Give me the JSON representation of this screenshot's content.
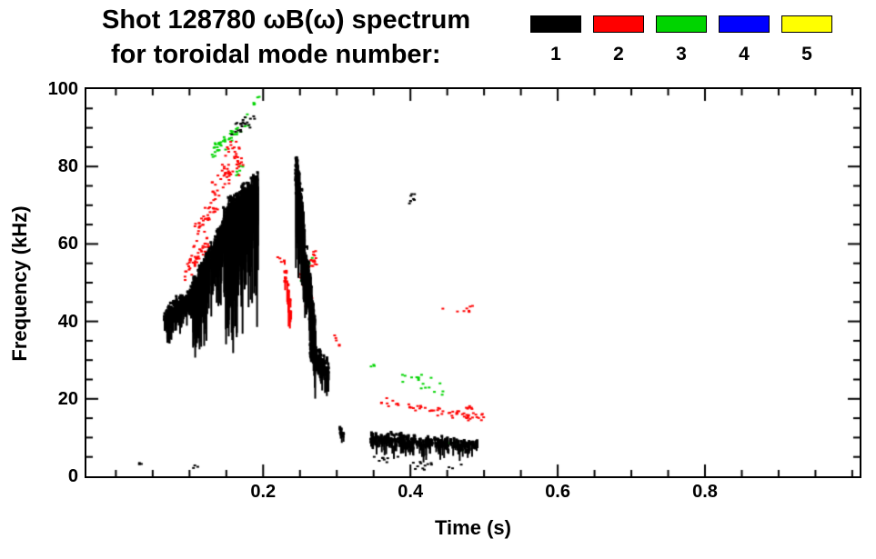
{
  "title_line1": "Shot 128780 ωB(ω) spectrum",
  "title_line2": "for toroidal mode number:",
  "legend": {
    "modes": [
      {
        "label": "1",
        "color": "#000000"
      },
      {
        "label": "2",
        "color": "#ff0000"
      },
      {
        "label": "3",
        "color": "#00d400"
      },
      {
        "label": "4",
        "color": "#0000ff"
      },
      {
        "label": "5",
        "color": "#ffff00"
      }
    ]
  },
  "colors": {
    "background": "#ffffff",
    "axis": "#000000"
  },
  "axes": {
    "x": {
      "label": "Time (s)",
      "major_ticks": [
        {
          "v": 0.2,
          "label": "0.2"
        },
        {
          "v": 0.4,
          "label": "0.4"
        },
        {
          "v": 0.6,
          "label": "0.6"
        },
        {
          "v": 0.8,
          "label": "0.8"
        }
      ],
      "minor_step": 0.05
    },
    "y": {
      "label": "Frequency (kHz)",
      "major_ticks": [
        {
          "v": 0,
          "label": "0"
        },
        {
          "v": 20,
          "label": "20"
        },
        {
          "v": 40,
          "label": "40"
        },
        {
          "v": 60,
          "label": "60"
        },
        {
          "v": 80,
          "label": "80"
        },
        {
          "v": 100,
          "label": "100"
        }
      ],
      "minor_step": 5
    }
  },
  "chart_data": {
    "type": "scatter",
    "title": "Shot 128780 ωB(ω) spectrum for toroidal mode number",
    "xlabel": "Time (s)",
    "ylabel": "Frequency (kHz)",
    "xlim": [
      -0.04,
      1.01
    ],
    "ylim": [
      0,
      100
    ],
    "legend_position": "top-right",
    "grid": false,
    "series": [
      {
        "name": "n=1",
        "color": "#000000",
        "clusters": [
          {
            "type": "streaks",
            "t": [
              0.065,
              0.105
            ],
            "f": [
              41,
              47
            ],
            "spread": 2.5,
            "tail": 8,
            "n": 220,
            "seed": 11
          },
          {
            "type": "streaks",
            "t": [
              0.103,
              0.147
            ],
            "f": [
              48,
              64
            ],
            "spread": 3,
            "tail": 22,
            "n": 300,
            "seed": 12
          },
          {
            "type": "streaks",
            "t": [
              0.145,
              0.192
            ],
            "f": [
              67,
              75
            ],
            "spread": 3.5,
            "tail": 38,
            "n": 340,
            "seed": 13
          },
          {
            "type": "speckle",
            "t": [
              0.155,
              0.19
            ],
            "f": [
              89,
              93
            ],
            "spread": 2,
            "n": 22,
            "seed": 14
          },
          {
            "type": "streaks",
            "t": [
              0.243,
              0.254
            ],
            "f": [
              80,
              66
            ],
            "spread": 5,
            "tail": 28,
            "n": 130,
            "seed": 15
          },
          {
            "type": "streaks",
            "t": [
              0.252,
              0.27
            ],
            "f": [
              62,
              36
            ],
            "spread": 6,
            "tail": 14,
            "n": 240,
            "seed": 16
          },
          {
            "type": "streaks",
            "t": [
              0.263,
              0.288
            ],
            "f": [
              33,
              27
            ],
            "spread": 3,
            "tail": 6,
            "n": 180,
            "seed": 17
          },
          {
            "type": "streaks",
            "t": [
              0.345,
              0.49
            ],
            "f": [
              10,
              8
            ],
            "spread": 1.5,
            "tail": 5,
            "n": 300,
            "seed": 18
          },
          {
            "type": "speckle",
            "t": [
              0.35,
              0.47
            ],
            "f": [
              4,
              3
            ],
            "spread": 1.5,
            "n": 22,
            "seed": 19
          },
          {
            "type": "speckle",
            "t": [
              0.028,
              0.036
            ],
            "f": [
              3,
              3.5
            ],
            "spread": 0.8,
            "n": 3,
            "seed": 20
          },
          {
            "type": "streaks",
            "t": [
              0.303,
              0.309
            ],
            "f": [
              12,
              11
            ],
            "spread": 1,
            "tail": 6,
            "n": 10,
            "seed": 21
          },
          {
            "type": "speckle",
            "t": [
              0.398,
              0.407
            ],
            "f": [
              71,
              74
            ],
            "spread": 1.5,
            "n": 8,
            "seed": 22
          },
          {
            "type": "speckle",
            "t": [
              0.104,
              0.112
            ],
            "f": [
              2.5,
              3
            ],
            "spread": 0.8,
            "n": 3,
            "seed": 23
          }
        ]
      },
      {
        "name": "n=2",
        "color": "#ff0000",
        "clusters": [
          {
            "type": "speckle",
            "t": [
              0.093,
              0.127
            ],
            "f": [
              53,
              60
            ],
            "spread": 2.5,
            "n": 45,
            "seed": 31
          },
          {
            "type": "speckle",
            "t": [
              0.105,
              0.14
            ],
            "f": [
              62,
              72
            ],
            "spread": 3,
            "n": 40,
            "seed": 32
          },
          {
            "type": "speckle",
            "t": [
              0.128,
              0.172
            ],
            "f": [
              73,
              83
            ],
            "spread": 3,
            "n": 50,
            "seed": 33
          },
          {
            "type": "speckle",
            "t": [
              0.148,
              0.168
            ],
            "f": [
              84,
              86
            ],
            "spread": 1.5,
            "n": 10,
            "seed": 34
          },
          {
            "type": "streaks",
            "t": [
              0.228,
              0.237
            ],
            "f": [
              54,
              42
            ],
            "spread": 3,
            "tail": 10,
            "n": 22,
            "seed": 35
          },
          {
            "type": "speckle",
            "t": [
              0.25,
              0.272
            ],
            "f": [
              50,
              57
            ],
            "spread": 2.5,
            "n": 34,
            "seed": 36
          },
          {
            "type": "speckle",
            "t": [
              0.256,
              0.266
            ],
            "f": [
              44,
              46
            ],
            "spread": 1.5,
            "n": 8,
            "seed": 37
          },
          {
            "type": "speckle",
            "t": [
              0.36,
              0.502
            ],
            "f": [
              19,
              15
            ],
            "spread": 1.3,
            "n": 60,
            "seed": 38
          },
          {
            "type": "speckle",
            "t": [
              0.44,
              0.486
            ],
            "f": [
              43.5,
              43
            ],
            "spread": 1,
            "n": 8,
            "seed": 39
          },
          {
            "type": "speckle",
            "t": [
              0.474,
              0.488
            ],
            "f": [
              18,
              17
            ],
            "spread": 1,
            "n": 6,
            "seed": 40
          },
          {
            "type": "speckle",
            "t": [
              0.296,
              0.304
            ],
            "f": [
              36,
              33
            ],
            "spread": 1.5,
            "n": 5,
            "seed": 41
          },
          {
            "type": "speckle",
            "t": [
              0.218,
              0.225
            ],
            "f": [
              57,
              55
            ],
            "spread": 1,
            "n": 3,
            "seed": 42
          }
        ]
      },
      {
        "name": "n=3",
        "color": "#00d400",
        "clusters": [
          {
            "type": "speckle",
            "t": [
              0.13,
              0.158
            ],
            "f": [
              84,
              88
            ],
            "spread": 2,
            "n": 30,
            "seed": 51
          },
          {
            "type": "speckle",
            "t": [
              0.156,
              0.18
            ],
            "f": [
              88,
              92
            ],
            "spread": 2,
            "n": 14,
            "seed": 52
          },
          {
            "type": "speckle",
            "t": [
              0.186,
              0.197
            ],
            "f": [
              96,
              97.5
            ],
            "spread": 1,
            "n": 5,
            "seed": 53
          },
          {
            "type": "speckle",
            "t": [
              0.16,
              0.172
            ],
            "f": [
              77,
              80
            ],
            "spread": 1.5,
            "n": 6,
            "seed": 54
          },
          {
            "type": "speckle",
            "t": [
              0.25,
              0.268
            ],
            "f": [
              51,
              57
            ],
            "spread": 2,
            "n": 16,
            "seed": 55
          },
          {
            "type": "speckle",
            "t": [
              0.378,
              0.446
            ],
            "f": [
              27,
              22
            ],
            "spread": 1.8,
            "n": 18,
            "seed": 56
          },
          {
            "type": "speckle",
            "t": [
              0.452,
              0.47
            ],
            "f": [
              9,
              7
            ],
            "spread": 1.5,
            "n": 10,
            "seed": 57
          },
          {
            "type": "speckle",
            "t": [
              0.34,
              0.352
            ],
            "f": [
              29,
              28
            ],
            "spread": 1,
            "n": 3,
            "seed": 58
          }
        ]
      },
      {
        "name": "n=4",
        "color": "#0000ff",
        "clusters": []
      },
      {
        "name": "n=5",
        "color": "#ffff00",
        "clusters": []
      }
    ]
  }
}
